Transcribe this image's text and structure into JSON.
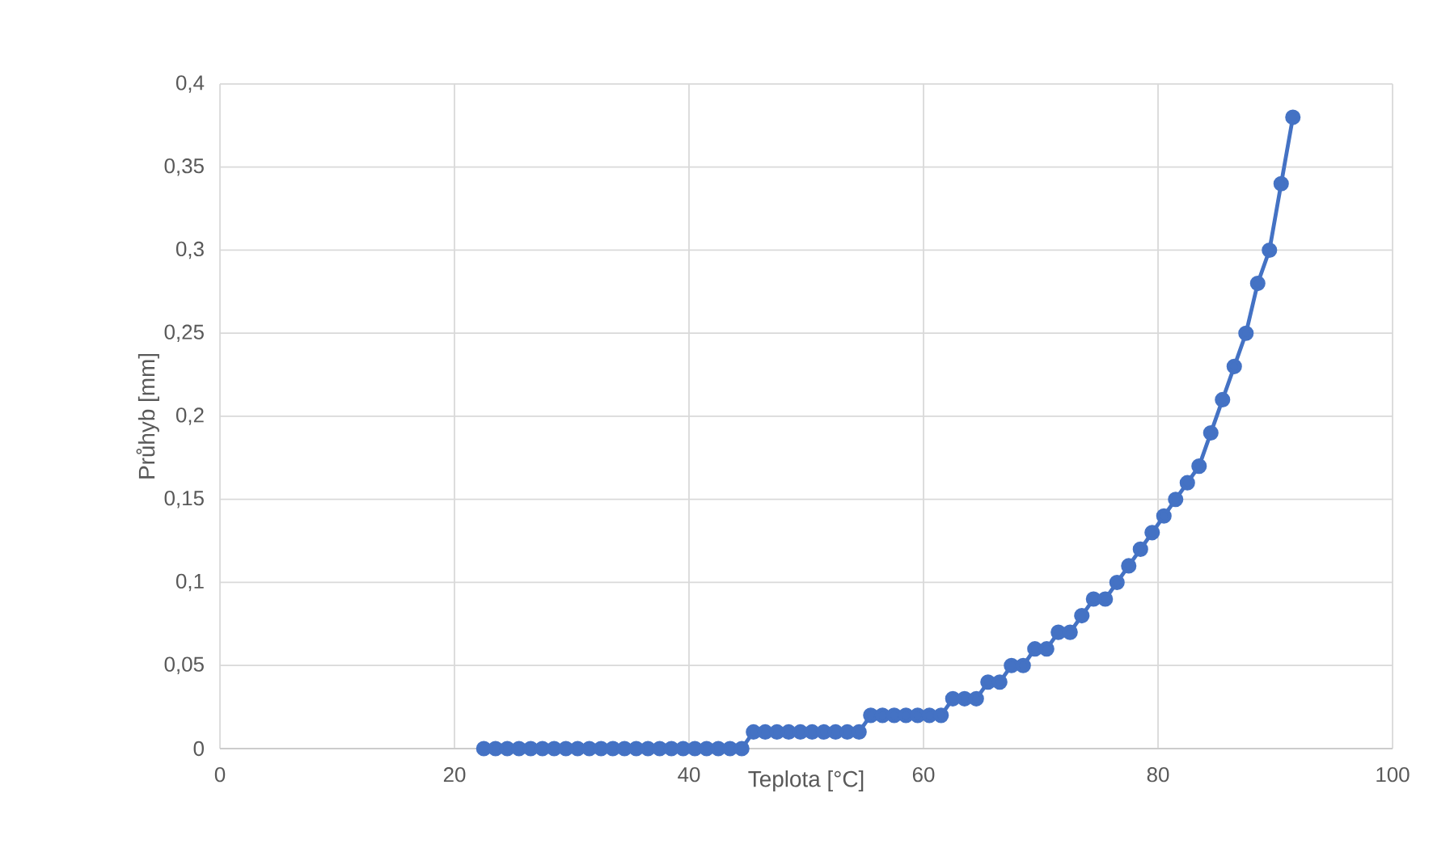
{
  "chart_data": {
    "type": "line",
    "xlabel": "Teplota [°C]",
    "ylabel": "Průhyb [mm]",
    "x": [
      22.5,
      23.5,
      24.5,
      25.5,
      26.5,
      27.5,
      28.5,
      29.5,
      30.5,
      31.5,
      32.5,
      33.5,
      34.5,
      35.5,
      36.5,
      37.5,
      38.5,
      39.5,
      40.5,
      41.5,
      42.5,
      43.5,
      44.5,
      45.5,
      46.5,
      47.5,
      48.5,
      49.5,
      50.5,
      51.5,
      52.5,
      53.5,
      54.5,
      55.5,
      56.5,
      57.5,
      58.5,
      59.5,
      60.5,
      61.5,
      62.5,
      63.5,
      64.5,
      65.5,
      66.5,
      67.5,
      68.5,
      69.5,
      70.5,
      71.5,
      72.5,
      73.5,
      74.5,
      75.5,
      76.5,
      77.5,
      78.5,
      79.5,
      80.5,
      81.5,
      82.5,
      83.5,
      84.5,
      85.5,
      86.5,
      87.5,
      88.5,
      89.5,
      90.5,
      91.5
    ],
    "values": [
      0,
      0,
      0,
      0,
      0,
      0,
      0,
      0,
      0,
      0,
      0,
      0,
      0,
      0,
      0,
      0,
      0,
      0,
      0,
      0,
      0,
      0,
      0,
      0.01,
      0.01,
      0.01,
      0.01,
      0.01,
      0.01,
      0.01,
      0.01,
      0.01,
      0.01,
      0.02,
      0.02,
      0.02,
      0.02,
      0.02,
      0.02,
      0.02,
      0.03,
      0.03,
      0.03,
      0.04,
      0.04,
      0.05,
      0.05,
      0.06,
      0.06,
      0.07,
      0.07,
      0.08,
      0.09,
      0.09,
      0.1,
      0.11,
      0.12,
      0.13,
      0.14,
      0.15,
      0.16,
      0.17,
      0.19,
      0.21,
      0.23,
      0.25,
      0.28,
      0.3,
      0.34,
      0.38
    ],
    "color": "#4472c4",
    "marker": "circle",
    "line_style": "solid",
    "grid": true,
    "xlim": [
      0,
      100
    ],
    "xticks": [
      0,
      20,
      40,
      60,
      80,
      100
    ],
    "ylim": [
      0,
      0.4
    ],
    "yticks": [
      0,
      {
        "value": 0.05,
        "label": "0,05"
      },
      {
        "value": 0.1,
        "label": "0,1"
      },
      {
        "value": 0.15,
        "label": "0,15"
      },
      {
        "value": 0.2,
        "label": "0,2"
      },
      {
        "value": 0.25,
        "label": "0,25"
      },
      {
        "value": 0.3,
        "label": "0,3"
      },
      {
        "value": 0.35,
        "label": "0,35"
      },
      {
        "value": 0.4,
        "label": "0,4"
      }
    ]
  }
}
